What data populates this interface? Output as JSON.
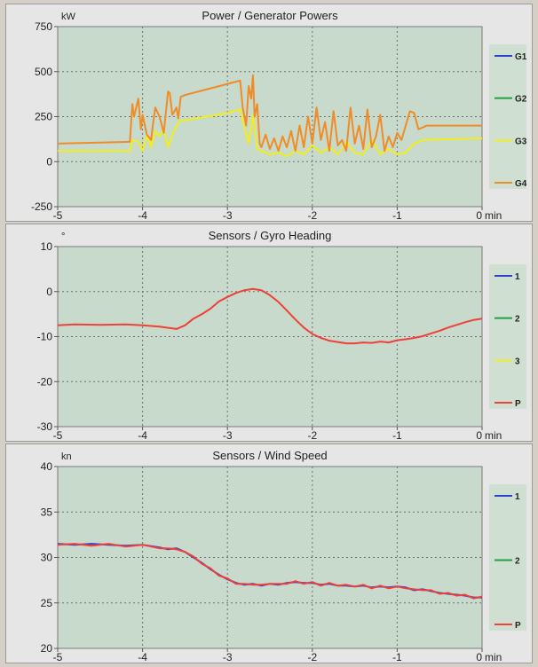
{
  "colors": {
    "plot_bg": "#c7dacb",
    "panel_bg": "#e6e6e6",
    "grid": "#6f6f6f"
  },
  "chart_data": [
    {
      "type": "line",
      "title": "Power / Generator Powers",
      "ylabel": "kW",
      "xlabel": "min",
      "xlim": [
        -5,
        0
      ],
      "ylim": [
        -250,
        750
      ],
      "xticks": [
        -5,
        -4,
        -3,
        -2,
        -1,
        0
      ],
      "xtick_labels": [
        "-5",
        "-4",
        "-3",
        "-2",
        "-1",
        "0"
      ],
      "yticks": [
        750,
        500,
        250,
        0,
        -250
      ],
      "ytick_labels": [
        "750",
        "500",
        "250",
        "0",
        "-250"
      ],
      "grid": true,
      "legend_position": "right",
      "series": [
        {
          "name": "G1",
          "color": "#3040c8",
          "x": [],
          "y": []
        },
        {
          "name": "G2",
          "color": "#20a040",
          "x": [],
          "y": []
        },
        {
          "name": "G3",
          "color": "#f2ee1c",
          "x": [
            -5,
            -4.15,
            -4.12,
            -4.05,
            -4.0,
            -3.95,
            -3.9,
            -3.85,
            -3.8,
            -3.75,
            -3.7,
            -3.65,
            -3.6,
            -3.55,
            -3.5,
            -3.0,
            -2.85,
            -2.8,
            -2.75,
            -2.7,
            -2.65,
            -2.6,
            -2.5,
            -2.4,
            -2.3,
            -2.2,
            -2.1,
            -2.0,
            -1.9,
            -1.8,
            -1.7,
            -1.6,
            -1.5,
            -1.4,
            -1.3,
            -1.2,
            -1.1,
            -1.0,
            -0.9,
            -0.8,
            -0.7,
            0
          ],
          "y": [
            60,
            60,
            120,
            110,
            60,
            150,
            80,
            170,
            140,
            180,
            80,
            150,
            200,
            230,
            230,
            270,
            290,
            190,
            100,
            260,
            70,
            60,
            40,
            50,
            30,
            60,
            40,
            90,
            50,
            80,
            40,
            110,
            50,
            40,
            120,
            40,
            70,
            40,
            50,
            100,
            120,
            130
          ]
        },
        {
          "name": "G4",
          "color": "#f08c28",
          "x": [
            -5,
            -4.15,
            -4.12,
            -4.1,
            -4.05,
            -4.02,
            -4.0,
            -3.95,
            -3.9,
            -3.88,
            -3.85,
            -3.8,
            -3.75,
            -3.7,
            -3.68,
            -3.65,
            -3.6,
            -3.58,
            -3.55,
            -3.5,
            -2.85,
            -2.82,
            -2.78,
            -2.75,
            -2.72,
            -2.7,
            -2.68,
            -2.65,
            -2.62,
            -2.6,
            -2.55,
            -2.5,
            -2.45,
            -2.4,
            -2.35,
            -2.3,
            -2.25,
            -2.2,
            -2.15,
            -2.1,
            -2.05,
            -2.0,
            -1.95,
            -1.9,
            -1.85,
            -1.8,
            -1.75,
            -1.7,
            -1.65,
            -1.6,
            -1.55,
            -1.5,
            -1.45,
            -1.4,
            -1.35,
            -1.3,
            -1.25,
            -1.2,
            -1.15,
            -1.1,
            -1.05,
            -1.0,
            -0.95,
            -0.9,
            -0.85,
            -0.8,
            -0.75,
            -0.7,
            -0.65,
            0
          ],
          "y": [
            100,
            110,
            320,
            250,
            350,
            180,
            260,
            150,
            120,
            200,
            300,
            250,
            160,
            390,
            380,
            260,
            300,
            240,
            360,
            370,
            450,
            300,
            200,
            420,
            350,
            480,
            250,
            320,
            100,
            80,
            150,
            70,
            130,
            60,
            140,
            80,
            170,
            60,
            200,
            80,
            250,
            100,
            300,
            120,
            220,
            60,
            280,
            90,
            120,
            60,
            300,
            100,
            200,
            70,
            290,
            80,
            140,
            260,
            60,
            140,
            80,
            160,
            120,
            200,
            280,
            270,
            180,
            190,
            200,
            200
          ]
        }
      ]
    },
    {
      "type": "line",
      "title": "Sensors / Gyro Heading",
      "ylabel": "°",
      "xlabel": "min",
      "xlim": [
        -5,
        0
      ],
      "ylim": [
        -30,
        10
      ],
      "xticks": [
        -5,
        -4,
        -3,
        -2,
        -1,
        0
      ],
      "xtick_labels": [
        "-5",
        "-4",
        "-3",
        "-2",
        "-1",
        "0"
      ],
      "yticks": [
        10,
        0,
        -10,
        -20,
        -30
      ],
      "ytick_labels": [
        "10",
        "0",
        "-10",
        "-20",
        "-30"
      ],
      "grid": true,
      "legend_position": "right",
      "series": [
        {
          "name": "1",
          "color": "#3040c8",
          "x": [],
          "y": []
        },
        {
          "name": "2",
          "color": "#20a040",
          "x": [],
          "y": []
        },
        {
          "name": "3",
          "color": "#f2ee1c",
          "x": [],
          "y": []
        },
        {
          "name": "P",
          "color": "#f0403a",
          "x": [
            -5,
            -4.8,
            -4.5,
            -4.2,
            -4.0,
            -3.8,
            -3.6,
            -3.5,
            -3.4,
            -3.3,
            -3.2,
            -3.1,
            -3.0,
            -2.9,
            -2.8,
            -2.7,
            -2.6,
            -2.5,
            -2.4,
            -2.3,
            -2.2,
            -2.1,
            -2.0,
            -1.9,
            -1.8,
            -1.7,
            -1.6,
            -1.5,
            -1.4,
            -1.3,
            -1.2,
            -1.1,
            -1.0,
            -0.9,
            -0.8,
            -0.7,
            -0.6,
            -0.5,
            -0.4,
            -0.3,
            -0.2,
            -0.1,
            0
          ],
          "y": [
            -7.5,
            -7.3,
            -7.4,
            -7.3,
            -7.5,
            -7.8,
            -8.3,
            -7.5,
            -6,
            -5,
            -3.8,
            -2.2,
            -1.2,
            -0.3,
            0.3,
            0.6,
            0.3,
            -0.8,
            -2.3,
            -4.2,
            -6.2,
            -8,
            -9.4,
            -10.3,
            -10.9,
            -11.2,
            -11.5,
            -11.5,
            -11.3,
            -11.4,
            -11.1,
            -11.3,
            -10.8,
            -10.6,
            -10.3,
            -9.9,
            -9.3,
            -8.7,
            -8,
            -7.4,
            -6.8,
            -6.3,
            -6
          ]
        }
      ]
    },
    {
      "type": "line",
      "title": "Sensors / Wind Speed",
      "ylabel": "kn",
      "xlabel": "min",
      "xlim": [
        -5,
        0
      ],
      "ylim": [
        20,
        40
      ],
      "xticks": [
        -5,
        -4,
        -3,
        -2,
        -1,
        0
      ],
      "xtick_labels": [
        "-5",
        "-4",
        "-3",
        "-2",
        "-1",
        "0"
      ],
      "yticks": [
        40,
        35,
        30,
        25,
        20
      ],
      "ytick_labels": [
        "40",
        "35",
        "30",
        "25",
        "20"
      ],
      "grid": true,
      "legend_position": "right",
      "series": [
        {
          "name": "1",
          "color": "#3040c8",
          "x": [
            -5,
            -4.8,
            -4.6,
            -4.4,
            -4.2,
            -4.0,
            -3.8,
            -3.7,
            -3.6,
            -3.5,
            -3.4,
            -3.3,
            -3.2,
            -3.1,
            -3.0,
            -2.9,
            -2.8,
            -2.7,
            -2.6,
            -2.5,
            -2.4,
            -2.3,
            -2.2,
            -2.1,
            -2.0,
            -1.9,
            -1.8,
            -1.7,
            -1.6,
            -1.5,
            -1.4,
            -1.3,
            -1.2,
            -1.1,
            -1.0,
            -0.9,
            -0.8,
            -0.7,
            -0.6,
            -0.5,
            -0.4,
            -0.3,
            -0.2,
            -0.1,
            0
          ],
          "y": [
            31.5,
            31.4,
            31.5,
            31.4,
            31.3,
            31.4,
            31.1,
            30.9,
            31.0,
            30.6,
            30.0,
            29.4,
            28.7,
            28.1,
            27.6,
            27.2,
            27.0,
            27.1,
            26.9,
            27.1,
            27.0,
            27.2,
            27.3,
            27.2,
            27.2,
            27.0,
            27.1,
            26.9,
            26.9,
            26.8,
            26.9,
            26.7,
            26.8,
            26.7,
            26.8,
            26.7,
            26.4,
            26.5,
            26.3,
            26.1,
            26.0,
            25.9,
            25.8,
            25.6,
            25.6
          ]
        },
        {
          "name": "2",
          "color": "#20a040",
          "x": [],
          "y": []
        },
        {
          "name": "P",
          "color": "#f0403a",
          "x": [
            -5,
            -4.8,
            -4.6,
            -4.4,
            -4.2,
            -4.0,
            -3.8,
            -3.7,
            -3.6,
            -3.5,
            -3.4,
            -3.3,
            -3.2,
            -3.1,
            -3.0,
            -2.9,
            -2.8,
            -2.7,
            -2.6,
            -2.5,
            -2.4,
            -2.3,
            -2.2,
            -2.1,
            -2.0,
            -1.9,
            -1.8,
            -1.7,
            -1.6,
            -1.5,
            -1.4,
            -1.3,
            -1.2,
            -1.1,
            -1.0,
            -0.9,
            -0.8,
            -0.7,
            -0.6,
            -0.5,
            -0.4,
            -0.3,
            -0.2,
            -0.1,
            0
          ],
          "y": [
            31.4,
            31.5,
            31.3,
            31.5,
            31.2,
            31.4,
            31.0,
            31.0,
            30.9,
            30.6,
            30.1,
            29.3,
            28.8,
            28.0,
            27.7,
            27.1,
            27.1,
            27.0,
            27.0,
            27.1,
            27.1,
            27.1,
            27.4,
            27.1,
            27.3,
            26.9,
            27.2,
            26.9,
            27.0,
            26.8,
            27.0,
            26.6,
            26.9,
            26.6,
            26.8,
            26.6,
            26.5,
            26.4,
            26.4,
            26.0,
            26.1,
            25.8,
            25.9,
            25.5,
            25.7
          ]
        }
      ]
    }
  ]
}
